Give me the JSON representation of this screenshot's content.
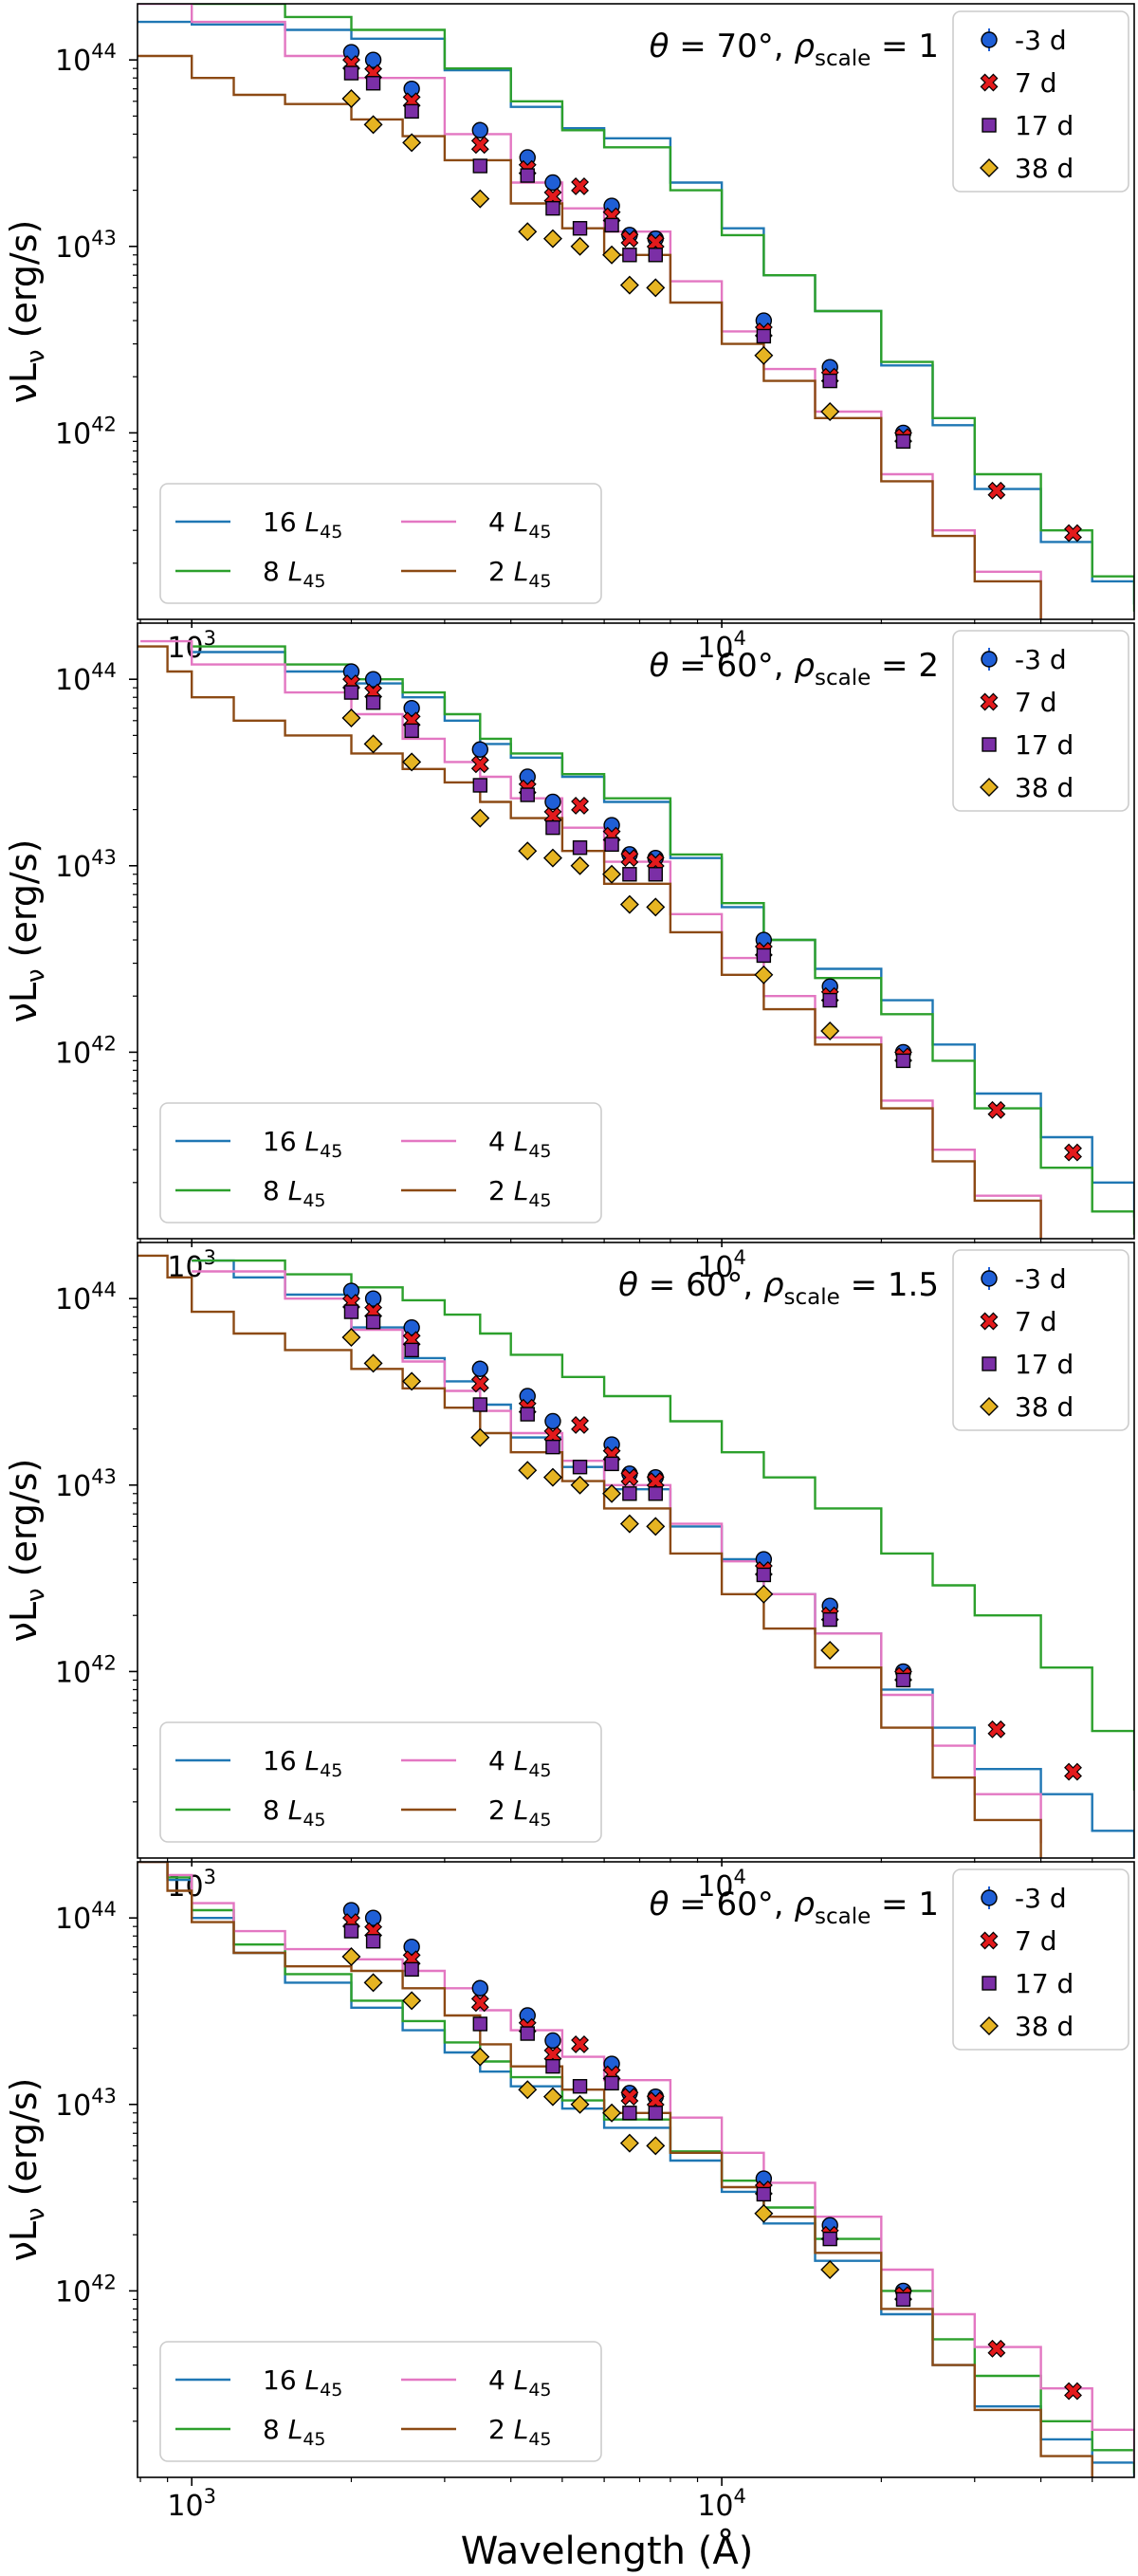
{
  "figure": {
    "xlabel_main": "Wavelength (",
    "xlabel_unit": "Å",
    "xlabel_close": ")",
    "ylabel_main": "νL",
    "ylabel_sub": "ν",
    "ylabel_unit": " (erg/s)",
    "tick_base": "10",
    "legend_unit_base": "L",
    "legend_unit_sub": "45",
    "theta_symbol": "θ",
    "rho_symbol": "ρ",
    "rho_sub": "scale",
    "equals": " = ",
    "degree_sep": "°, "
  },
  "colors": {
    "16 L45": "#1f77b4",
    "8 L45": "#2ca02c",
    "4 L45": "#e377c2",
    "2 L45": "#8c4a14",
    "-3 d": "#1f5fd6",
    "7 d": "#e31a1c",
    "17 d": "#7b2fa6",
    "38 d": "#e6b422"
  },
  "chart_data": [
    {
      "type": "line",
      "panel": "theta70_rho1",
      "theta": "70",
      "rho_scale": "1",
      "xscale": "log",
      "yscale": "log",
      "xlim": [
        790,
        60000
      ],
      "ylim": [
        1e+41,
        2e+44
      ],
      "xticks": [
        {
          "exp": "3",
          "value": 1000
        },
        {
          "exp": "4",
          "value": 10000
        }
      ],
      "yticks": [
        {
          "exp": "42",
          "value": 1e+42
        },
        {
          "exp": "43",
          "value": 1e+43
        },
        {
          "exp": "44",
          "value": 1e+44
        }
      ],
      "ylabel": "νLν (erg/s)",
      "xlabel": "",
      "legend_position": "lower-left",
      "series": [
        {
          "name": "16 L45",
          "coef": "16",
          "x": [
            790,
            1000,
            1500,
            2000,
            3000,
            4000,
            5000,
            6000,
            8000,
            10000,
            12000,
            15000,
            20000,
            25000,
            30000,
            40000,
            50000,
            60000
          ],
          "y": [
            1.6e+44,
            1.55e+44,
            1.45e+44,
            1.3e+44,
            8.8e+43,
            5.6e+43,
            4.3e+43,
            3.8e+43,
            2.2e+43,
            1.25e+43,
            7e+42,
            4.5e+42,
            2.3e+42,
            1.1e+42,
            5e+41,
            2.6e+41,
            1.6e+41,
            1.2e+41
          ]
        },
        {
          "name": "8 L45",
          "coef": "8",
          "x": [
            790,
            1000,
            1500,
            2000,
            3000,
            4000,
            5000,
            6000,
            8000,
            10000,
            12000,
            15000,
            20000,
            25000,
            30000,
            40000,
            50000,
            60000
          ],
          "y": [
            2.2e+44,
            2e+44,
            1.7e+44,
            1.45e+44,
            9e+43,
            6e+43,
            4.2e+43,
            3.4e+43,
            2e+43,
            1.15e+43,
            7e+42,
            4.5e+42,
            2.4e+42,
            1.2e+42,
            6e+41,
            3e+41,
            1.7e+41,
            1.1e+41
          ]
        },
        {
          "name": "4 L45",
          "coef": "4",
          "x": [
            790,
            1000,
            1500,
            2000,
            3000,
            4000,
            5000,
            6000,
            8000,
            10000,
            12000,
            15000,
            20000,
            25000,
            30000,
            40000
          ],
          "y": [
            2e+44,
            1.6e+44,
            1.05e+44,
            8e+43,
            4e+43,
            2.2e+43,
            1.6e+43,
            1.2e+43,
            6.5e+42,
            3.5e+42,
            2.2e+42,
            1.3e+42,
            6e+41,
            3e+41,
            1.8e+41,
            1e+41
          ]
        },
        {
          "name": "2 L45",
          "coef": "2",
          "x": [
            790,
            1000,
            1200,
            1500,
            2000,
            2500,
            3000,
            4000,
            5000,
            6000,
            8000,
            10000,
            12000,
            15000,
            20000,
            25000,
            30000,
            40000
          ],
          "y": [
            1.05e+44,
            8e+43,
            6.5e+43,
            5.8e+43,
            4.8e+43,
            3.9e+43,
            2.9e+43,
            1.7e+43,
            1.25e+43,
            9e+42,
            5e+42,
            3e+42,
            1.9e+42,
            1.2e+42,
            5.5e+41,
            2.8e+41,
            1.6e+41,
            1e+41
          ]
        }
      ]
    },
    {
      "type": "line",
      "panel": "theta60_rho2",
      "theta": "60",
      "rho_scale": "2",
      "xscale": "log",
      "yscale": "log",
      "xlim": [
        790,
        60000
      ],
      "ylim": [
        1e+41,
        2e+44
      ],
      "xticks": [
        {
          "exp": "3",
          "value": 1000
        },
        {
          "exp": "4",
          "value": 10000
        }
      ],
      "yticks": [
        {
          "exp": "42",
          "value": 1e+42
        },
        {
          "exp": "43",
          "value": 1e+43
        },
        {
          "exp": "44",
          "value": 1e+44
        }
      ],
      "ylabel": "νLν (erg/s)",
      "xlabel": "",
      "legend_position": "lower-left",
      "series": [
        {
          "name": "16 L45",
          "coef": "16",
          "x": [
            1000,
            1500,
            2000,
            2500,
            3000,
            3500,
            4000,
            5000,
            6000,
            8000,
            10000,
            12000,
            15000,
            20000,
            25000,
            30000,
            40000,
            50000,
            60000
          ],
          "y": [
            1.4e+44,
            1.1e+44,
            9.5e+43,
            8e+43,
            6e+43,
            4.5e+43,
            3.8e+43,
            3e+43,
            2.2e+43,
            1.1e+43,
            6e+42,
            4e+42,
            2.8e+42,
            1.9e+42,
            1.1e+42,
            6e+41,
            3.5e+41,
            2e+41,
            1.3e+41
          ]
        },
        {
          "name": "8 L45",
          "coef": "8",
          "x": [
            1000,
            1500,
            2000,
            2500,
            3000,
            3500,
            4000,
            5000,
            6000,
            8000,
            10000,
            12000,
            15000,
            20000,
            25000,
            30000,
            40000,
            50000,
            60000
          ],
          "y": [
            1.5e+44,
            1.2e+44,
            1e+44,
            8.5e+43,
            6.5e+43,
            4.8e+43,
            4e+43,
            3.1e+43,
            2.3e+43,
            1.15e+43,
            6.3e+42,
            4e+42,
            2.5e+42,
            1.6e+42,
            9e+41,
            5e+41,
            2.4e+41,
            1.4e+41,
            1.05e+41
          ]
        },
        {
          "name": "4 L45",
          "coef": "4",
          "x": [
            800,
            1000,
            1500,
            2000,
            2500,
            3000,
            3500,
            4000,
            5000,
            6000,
            8000,
            10000,
            12000,
            15000,
            20000,
            25000,
            30000,
            40000
          ],
          "y": [
            1.6e+44,
            1.2e+44,
            8.5e+43,
            6.5e+43,
            4.8e+43,
            3.6e+43,
            3e+43,
            2.3e+43,
            1.6e+43,
            1.05e+43,
            5.5e+42,
            3.2e+42,
            2e+42,
            1.2e+42,
            5.5e+41,
            3e+41,
            1.7e+41,
            1e+41
          ]
        },
        {
          "name": "2 L45",
          "coef": "2",
          "x": [
            790,
            900,
            1000,
            1200,
            1500,
            2000,
            2500,
            3000,
            3500,
            4000,
            5000,
            6000,
            8000,
            10000,
            12000,
            15000,
            20000,
            25000,
            30000,
            40000
          ],
          "y": [
            1.5e+44,
            1.1e+44,
            8e+43,
            6e+43,
            5e+43,
            4e+43,
            3.3e+43,
            2.8e+43,
            2.2e+43,
            1.8e+43,
            1.2e+43,
            8e+42,
            4.4e+42,
            2.6e+42,
            1.7e+42,
            1.1e+42,
            5e+41,
            2.6e+41,
            1.6e+41,
            1e+41
          ]
        }
      ]
    },
    {
      "type": "line",
      "panel": "theta60_rho1.5",
      "theta": "60",
      "rho_scale": "1.5",
      "xscale": "log",
      "yscale": "log",
      "xlim": [
        790,
        60000
      ],
      "ylim": [
        1e+41,
        2e+44
      ],
      "xticks": [
        {
          "exp": "3",
          "value": 1000
        },
        {
          "exp": "4",
          "value": 10000
        }
      ],
      "yticks": [
        {
          "exp": "42",
          "value": 1e+42
        },
        {
          "exp": "43",
          "value": 1e+43
        },
        {
          "exp": "44",
          "value": 1e+44
        }
      ],
      "ylabel": "νLν (erg/s)",
      "xlabel": "",
      "legend_position": "lower-left",
      "series": [
        {
          "name": "16 L45",
          "coef": "16",
          "x": [
            1000,
            1200,
            1500,
            2000,
            2500,
            3000,
            3500,
            4000,
            5000,
            6000,
            8000,
            10000,
            12000,
            15000,
            20000,
            25000,
            30000,
            40000,
            50000,
            60000
          ],
          "y": [
            1.6e+44,
            1.3e+44,
            1.05e+44,
            7e+43,
            4.8e+43,
            3.6e+43,
            2.7e+43,
            1.8e+43,
            1.25e+43,
            9.5e+42,
            6e+42,
            4e+42,
            2.6e+42,
            1.6e+42,
            8e+41,
            5e+41,
            3e+41,
            2.2e+41,
            1.4e+41,
            1e+41
          ]
        },
        {
          "name": "8 L45",
          "coef": "8",
          "x": [
            1000,
            1500,
            2000,
            2500,
            3000,
            3500,
            4000,
            5000,
            6000,
            8000,
            10000,
            12000,
            15000,
            20000,
            25000,
            30000,
            40000,
            50000,
            60000
          ],
          "y": [
            1.6e+44,
            1.35e+44,
            1.15e+44,
            9.8e+43,
            8.2e+43,
            6.5e+43,
            5e+43,
            3.8e+43,
            3e+43,
            2.2e+43,
            1.5e+43,
            1.1e+43,
            7.5e+42,
            4.3e+42,
            2.9e+42,
            2e+42,
            1.05e+42,
            4.8e+41,
            2.3e+41
          ]
        },
        {
          "name": "4 L45",
          "coef": "4",
          "x": [
            1000,
            1500,
            2000,
            2500,
            3000,
            3500,
            4000,
            5000,
            6000,
            8000,
            10000,
            12000,
            15000,
            20000,
            25000,
            30000,
            40000
          ],
          "y": [
            1.4e+44,
            1e+44,
            6.8e+43,
            4.6e+43,
            3.2e+43,
            2.5e+43,
            1.9e+43,
            1.35e+43,
            1e+43,
            6.2e+42,
            3.9e+42,
            2.6e+42,
            1.6e+42,
            7.5e+41,
            4e+41,
            2.2e+41,
            1.2e+41
          ]
        },
        {
          "name": "2 L45",
          "coef": "2",
          "x": [
            790,
            900,
            1000,
            1200,
            1500,
            2000,
            2500,
            3000,
            3500,
            4000,
            5000,
            6000,
            8000,
            10000,
            12000,
            15000,
            20000,
            25000,
            30000,
            40000
          ],
          "y": [
            1.7e+44,
            1.3e+44,
            8.5e+43,
            6.5e+43,
            5.3e+43,
            4.2e+43,
            3.3e+43,
            2.6e+43,
            1.9e+43,
            1.5e+43,
            1.05e+43,
            7.5e+42,
            4.3e+42,
            2.6e+42,
            1.7e+42,
            1.05e+42,
            5e+41,
            2.7e+41,
            1.6e+41,
            1e+41
          ]
        }
      ]
    },
    {
      "type": "line",
      "panel": "theta60_rho1",
      "theta": "60",
      "rho_scale": "1",
      "xscale": "log",
      "yscale": "log",
      "xlim": [
        790,
        60000
      ],
      "ylim": [
        1e+41,
        2e+44
      ],
      "xticks": [
        {
          "exp": "3",
          "value": 1000
        },
        {
          "exp": "4",
          "value": 10000
        }
      ],
      "yticks": [
        {
          "exp": "42",
          "value": 1e+42
        },
        {
          "exp": "43",
          "value": 1e+43
        },
        {
          "exp": "44",
          "value": 1e+44
        }
      ],
      "ylabel": "νLν (erg/s)",
      "xlabel": "Wavelength (Å)",
      "legend_position": "lower-left",
      "series": [
        {
          "name": "16 L45",
          "coef": "16",
          "x": [
            790,
            900,
            1000,
            1200,
            1500,
            2000,
            2500,
            3000,
            3500,
            4000,
            5000,
            6000,
            8000,
            10000,
            12000,
            15000,
            20000,
            25000,
            30000,
            40000,
            50000,
            60000
          ],
          "y": [
            2e+44,
            1.6e+44,
            1e+44,
            6.5e+43,
            4.5e+43,
            3.3e+43,
            2.5e+43,
            1.9e+43,
            1.5e+43,
            1.25e+43,
            9.5e+42,
            7.5e+42,
            5e+42,
            3.4e+42,
            2.3e+42,
            1.45e+42,
            7.5e+41,
            4e+41,
            2.4e+41,
            1.6e+41,
            1.2e+41,
            1e+41
          ]
        },
        {
          "name": "8 L45",
          "coef": "8",
          "x": [
            790,
            900,
            1000,
            1200,
            1500,
            2000,
            2500,
            3000,
            3500,
            4000,
            5000,
            6000,
            8000,
            10000,
            12000,
            15000,
            20000,
            25000,
            30000,
            40000,
            50000,
            60000
          ],
          "y": [
            2e+44,
            1.65e+44,
            1.1e+44,
            7.2e+43,
            5e+43,
            3.6e+43,
            2.8e+43,
            2.15e+43,
            1.7e+43,
            1.4e+43,
            1.05e+43,
            8.3e+42,
            5.6e+42,
            3.9e+42,
            2.8e+42,
            1.9e+42,
            1e+42,
            5.5e+41,
            3.5e+41,
            2e+41,
            1.4e+41,
            1.05e+41
          ]
        },
        {
          "name": "4 L45",
          "coef": "4",
          "x": [
            790,
            900,
            1000,
            1200,
            1500,
            2000,
            2500,
            3000,
            3500,
            4000,
            5000,
            6000,
            8000,
            10000,
            12000,
            15000,
            20000,
            25000,
            30000,
            40000,
            50000,
            60000
          ],
          "y": [
            2e+44,
            1.7e+44,
            1.2e+44,
            8.5e+43,
            6.8e+43,
            6e+43,
            5.2e+43,
            4.2e+43,
            3.2e+43,
            2.5e+43,
            1.8e+43,
            1.35e+43,
            8.5e+42,
            5.5e+42,
            3.8e+42,
            2.5e+42,
            1.3e+42,
            7.5e+41,
            5e+41,
            3e+41,
            1.8e+41,
            1.2e+41
          ]
        },
        {
          "name": "2 L45",
          "coef": "2",
          "x": [
            790,
            900,
            1000,
            1200,
            1500,
            2000,
            2500,
            3000,
            3500,
            4000,
            5000,
            6000,
            8000,
            10000,
            12000,
            15000,
            20000,
            25000,
            30000,
            40000,
            50000
          ],
          "y": [
            2e+44,
            1.4e+44,
            9.5e+43,
            6.5e+43,
            5.5e+43,
            5.2e+43,
            4.2e+43,
            3e+43,
            2.1e+43,
            1.6e+43,
            1.2e+43,
            9e+42,
            5.5e+42,
            3.6e+42,
            2.5e+42,
            1.6e+42,
            8e+41,
            4e+41,
            2.3e+41,
            1.3e+41,
            1e+41
          ]
        }
      ]
    }
  ],
  "observations": {
    "x": [
      2000,
      2200,
      2600,
      3500,
      4300,
      4800,
      5400,
      6200,
      6700,
      7500,
      12000,
      16000,
      22000,
      33000,
      46000
    ],
    "series": [
      {
        "label": "-3 d",
        "marker": "circle",
        "y": [
          1.1e+44,
          1e+44,
          7e+43,
          4.2e+43,
          3e+43,
          2.2e+43,
          null,
          1.65e+43,
          1.15e+43,
          1.1e+43,
          4e+42,
          2.25e+42,
          1e+42,
          null,
          null
        ]
      },
      {
        "label": "7 d",
        "marker": "x",
        "y": [
          9.5e+43,
          8.5e+43,
          6e+43,
          3.5e+43,
          2.6e+43,
          1.85e+43,
          2.1e+43,
          1.45e+43,
          1.1e+43,
          1.05e+43,
          3.5e+42,
          2e+42,
          9.5e+41,
          4.9e+41,
          2.9e+41
        ]
      },
      {
        "label": "17 d",
        "marker": "square",
        "y": [
          8.5e+43,
          7.5e+43,
          5.3e+43,
          2.7e+43,
          2.4e+43,
          1.6e+43,
          1.25e+43,
          1.3e+43,
          9e+42,
          9e+42,
          3.3e+42,
          1.9e+42,
          9e+41,
          null,
          null
        ]
      },
      {
        "label": "38 d",
        "marker": "diamond",
        "y": [
          6.2e+43,
          4.5e+43,
          3.6e+43,
          1.8e+43,
          1.2e+43,
          1.1e+43,
          1e+43,
          9e+42,
          6.2e+42,
          6e+42,
          2.6e+42,
          1.3e+42,
          null,
          null,
          null
        ]
      }
    ]
  }
}
